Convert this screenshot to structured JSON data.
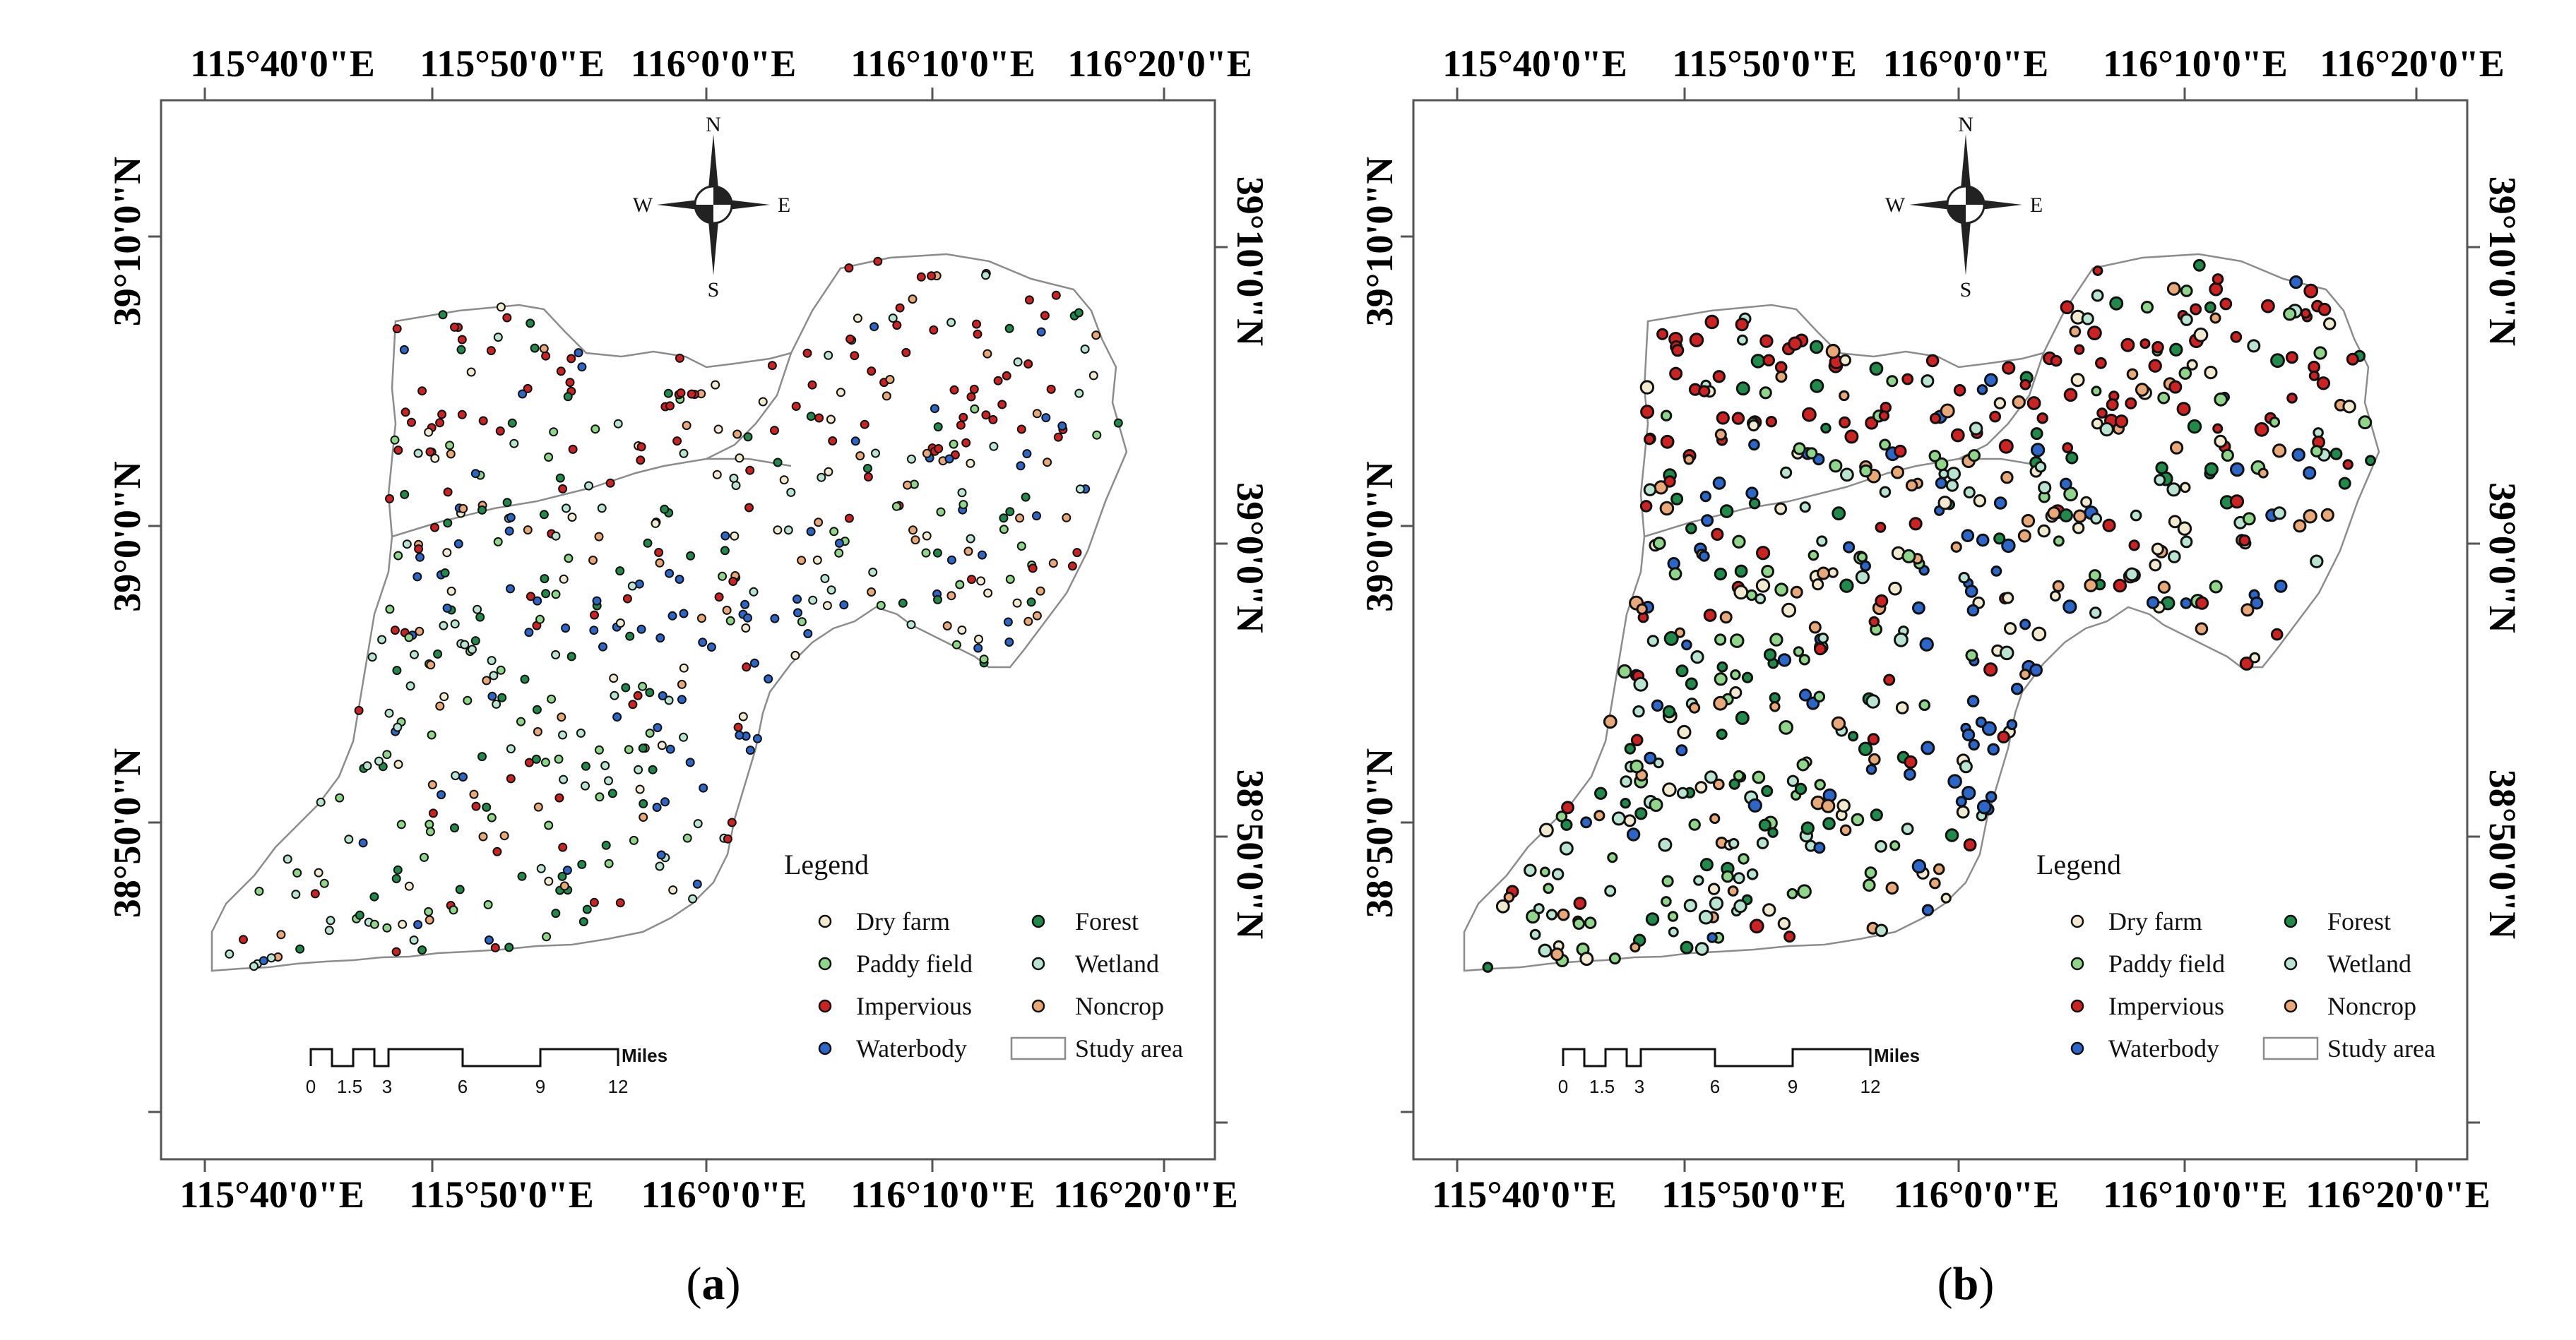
{
  "panels": [
    {
      "id": "a",
      "caption": "a",
      "top_lon_labels": [
        "115°40'0\"E",
        "115°50'0\"E",
        "116°0'0\"E",
        "116°10'0\"E",
        "116°20'0\"E"
      ],
      "bottom_lon_labels": [
        "115°40'0\"E",
        "115°50'0\"E",
        "116°0'0\"E",
        "116°10'0\"E",
        "116°20'0\"E"
      ],
      "left_lat_labels": [
        "39°10'0\"N",
        "39°0'0\"N",
        "38°50'0\"N"
      ],
      "right_lat_labels": [
        "39°10'0\"N",
        "39°0'0\"N",
        "38°50'0\"N"
      ],
      "seed": 11
    },
    {
      "id": "b",
      "caption": "b",
      "top_lon_labels": [
        "115°40'0\"E",
        "115°50'0\"E",
        "116°0'0\"E",
        "116°10'0\"E",
        "116°20'0\"E"
      ],
      "bottom_lon_labels": [
        "115°40'0\"E",
        "115°50'0\"E",
        "116°0'0\"E",
        "116°10'0\"E",
        "116°20'0\"E"
      ],
      "left_lat_labels": [
        "39°10'0\"N",
        "39°0'0\"N",
        "38°50'0\"N"
      ],
      "right_lat_labels": [
        "39°10'0\"N",
        "39°0'0\"N",
        "38°50'0\"N"
      ],
      "seed": 29
    }
  ],
  "compass": {
    "n": "N",
    "s": "S",
    "e": "E",
    "w": "W"
  },
  "legend": {
    "title": "Legend",
    "classes": [
      {
        "label": "Dry farm",
        "color": "#f2ead0"
      },
      {
        "label": "Paddy field",
        "color": "#8fd68a"
      },
      {
        "label": "Impervious",
        "color": "#cc2222"
      },
      {
        "label": "Waterbody",
        "color": "#2c66c8"
      },
      {
        "label": "Forest",
        "color": "#1f8a4a"
      },
      {
        "label": "Wetland",
        "color": "#b9e4d2"
      },
      {
        "label": "Noncrop",
        "color": "#e8a878"
      }
    ],
    "study_area": "Study area"
  },
  "scalebar": {
    "ticks": [
      "0",
      "1.5",
      "3",
      "6",
      "9",
      "12"
    ],
    "unit": "Miles"
  }
}
